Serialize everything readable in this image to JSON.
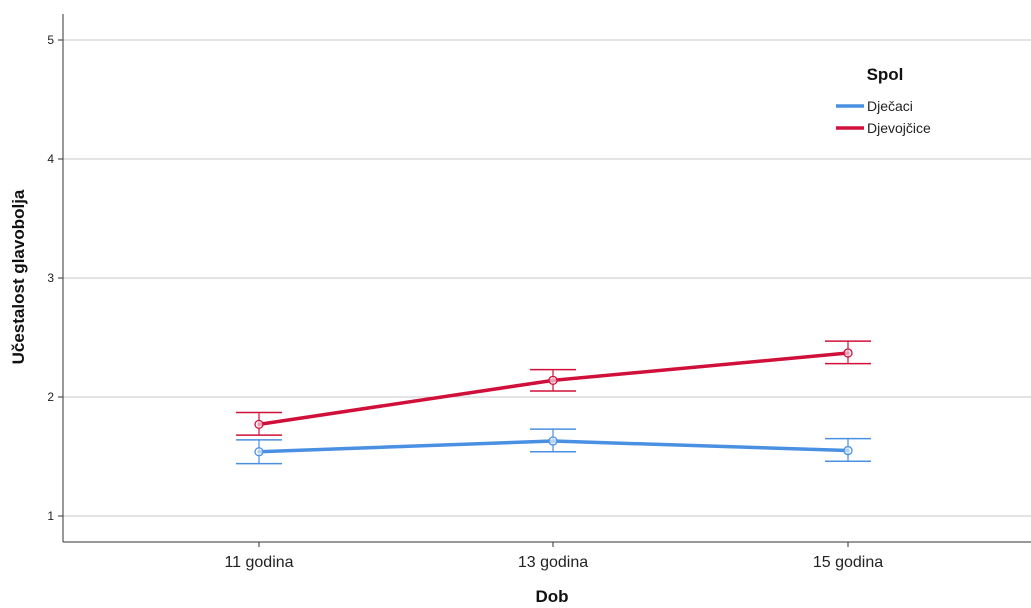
{
  "chart_data": {
    "type": "line",
    "title": "",
    "xlabel": "Dob",
    "ylabel": "Učestalost glavobolja",
    "categories": [
      "11 godina",
      "13 godina",
      "15 godina"
    ],
    "ylim": [
      0.8,
      5.2
    ],
    "yticks": [
      "1",
      "2",
      "3",
      "4",
      "5"
    ],
    "grid": "horizontal",
    "legend": {
      "title": "Spol",
      "placement": "top-right"
    },
    "series": [
      {
        "name": "Dječaci",
        "color": "#4a90e2",
        "values": [
          1.54,
          1.63,
          1.55
        ],
        "error_low": [
          1.44,
          1.54,
          1.46
        ],
        "error_high": [
          1.64,
          1.73,
          1.65
        ]
      },
      {
        "name": "Djevojčice",
        "color": "#d0103a",
        "values": [
          1.77,
          2.14,
          2.37
        ],
        "error_low": [
          1.68,
          2.05,
          2.28
        ],
        "error_high": [
          1.87,
          2.23,
          2.47
        ]
      }
    ]
  }
}
